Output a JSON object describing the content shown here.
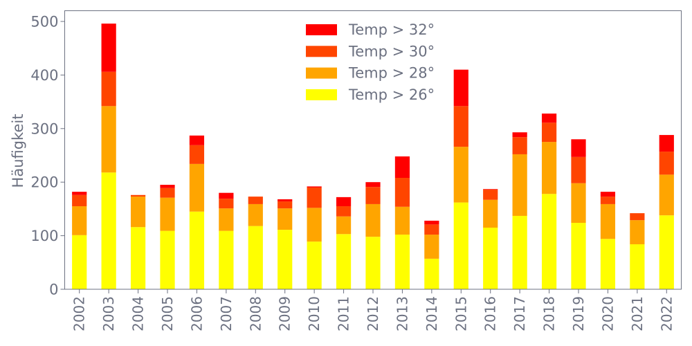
{
  "chart_data": {
    "type": "bar",
    "stacked": true,
    "title": "",
    "xlabel": "",
    "ylabel": "Häufigkeit",
    "ylim": [
      0,
      520
    ],
    "yticks": [
      0,
      100,
      200,
      300,
      400,
      500
    ],
    "grid": false,
    "legend_placement": "top-center",
    "categories": [
      "2002",
      "2003",
      "2004",
      "2005",
      "2006",
      "2007",
      "2008",
      "2009",
      "2010",
      "2011",
      "2012",
      "2013",
      "2014",
      "2015",
      "2016",
      "2017",
      "2018",
      "2019",
      "2020",
      "2021",
      "2022"
    ],
    "series": [
      {
        "name": "Temp > 26°",
        "color": "#ffff00",
        "values": [
          101,
          218,
          116,
          109,
          145,
          109,
          118,
          111,
          89,
          103,
          98,
          102,
          57,
          162,
          115,
          137,
          178,
          124,
          94,
          84,
          138
        ]
      },
      {
        "name": "Temp > 28°",
        "color": "#ffa500",
        "values": [
          54,
          124,
          57,
          62,
          89,
          42,
          41,
          40,
          63,
          33,
          61,
          52,
          45,
          104,
          52,
          115,
          97,
          74,
          65,
          45,
          76
        ]
      },
      {
        "name": "Temp > 30°",
        "color": "#ff4500",
        "values": [
          21,
          64,
          3,
          18,
          35,
          18,
          14,
          13,
          38,
          19,
          32,
          54,
          19,
          76,
          19,
          32,
          36,
          49,
          14,
          13,
          43
        ]
      },
      {
        "name": "Temp > 32°",
        "color": "#ff0000",
        "values": [
          6,
          90,
          0,
          6,
          18,
          11,
          0,
          4,
          2,
          17,
          9,
          40,
          7,
          68,
          1,
          9,
          17,
          33,
          9,
          0,
          31
        ]
      }
    ],
    "legend_order": [
      "Temp > 32°",
      "Temp > 30°",
      "Temp > 28°",
      "Temp > 26°"
    ],
    "axis_color": "#6b7080"
  }
}
